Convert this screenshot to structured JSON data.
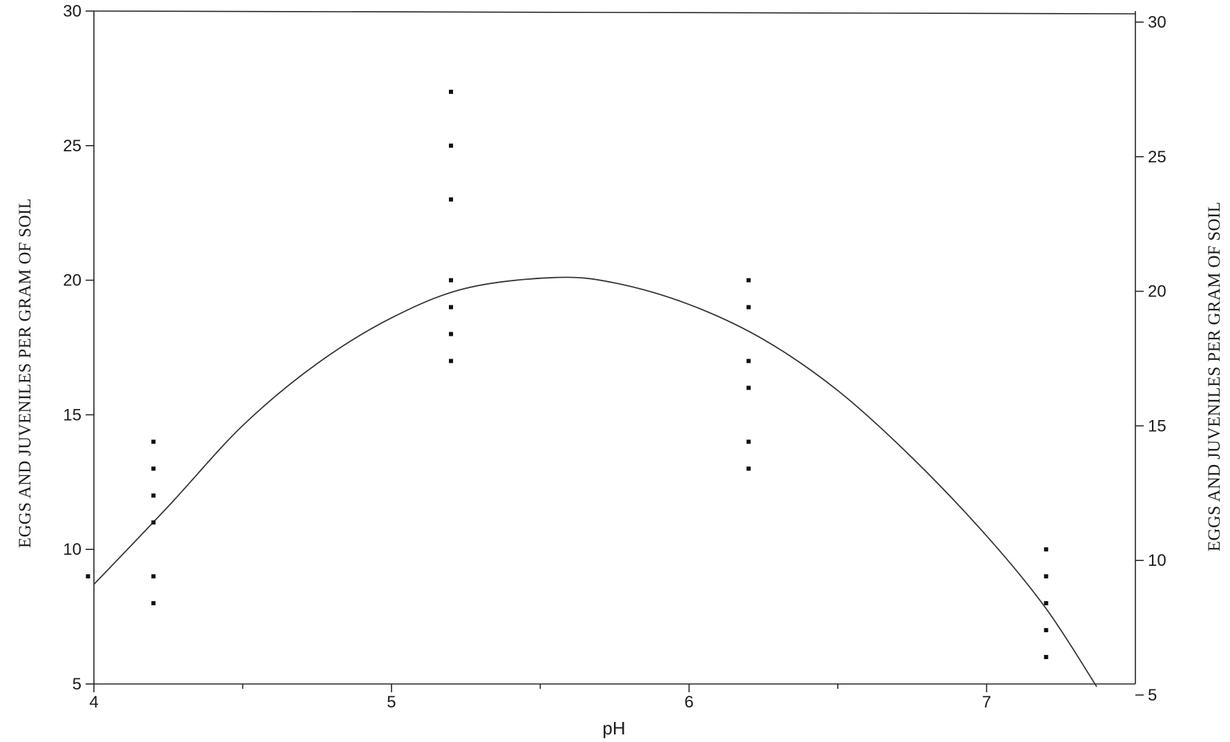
{
  "chart_data": {
    "type": "scatter",
    "title": "",
    "xlabel": "pH",
    "ylabel_left": "EGGS AND JUVENILES PER GRAM OF SOIL",
    "ylabel_right": "EGGS AND JUVENILES PER GRAM OF SOIL",
    "xlim": [
      4,
      7.5
    ],
    "ylim": [
      5,
      30
    ],
    "x_ticks": [
      4,
      5,
      6,
      7
    ],
    "x_minor_ticks": [
      4.5,
      5.5,
      6.5
    ],
    "y_ticks": [
      5,
      10,
      15,
      20,
      25,
      30
    ],
    "grid": false,
    "series": [
      {
        "type": "scatter",
        "points": [
          {
            "x": 3.98,
            "y": 9
          },
          {
            "x": 4.2,
            "y": 14
          },
          {
            "x": 4.2,
            "y": 13
          },
          {
            "x": 4.2,
            "y": 12
          },
          {
            "x": 4.2,
            "y": 11
          },
          {
            "x": 4.2,
            "y": 9
          },
          {
            "x": 4.2,
            "y": 8
          },
          {
            "x": 5.2,
            "y": 27
          },
          {
            "x": 5.2,
            "y": 25
          },
          {
            "x": 5.2,
            "y": 23
          },
          {
            "x": 5.2,
            "y": 20
          },
          {
            "x": 5.2,
            "y": 19
          },
          {
            "x": 5.2,
            "y": 18
          },
          {
            "x": 5.2,
            "y": 17
          },
          {
            "x": 6.2,
            "y": 20
          },
          {
            "x": 6.2,
            "y": 19
          },
          {
            "x": 6.2,
            "y": 17
          },
          {
            "x": 6.2,
            "y": 16
          },
          {
            "x": 6.2,
            "y": 14
          },
          {
            "x": 6.2,
            "y": 13
          },
          {
            "x": 7.2,
            "y": 10
          },
          {
            "x": 7.2,
            "y": 9
          },
          {
            "x": 7.2,
            "y": 8
          },
          {
            "x": 7.2,
            "y": 7
          },
          {
            "x": 7.2,
            "y": 6
          }
        ]
      },
      {
        "type": "line",
        "fit": "quadratic",
        "x": [
          4.0,
          4.25,
          4.5,
          4.75,
          5.0,
          5.25,
          5.55,
          5.75,
          6.0,
          6.25,
          6.5,
          6.75,
          7.0,
          7.2,
          7.37
        ],
        "y": [
          8.7,
          11.6,
          14.6,
          16.9,
          18.6,
          19.7,
          20.1,
          19.9,
          19.1,
          17.8,
          15.9,
          13.4,
          10.5,
          7.8,
          4.9
        ]
      }
    ]
  }
}
